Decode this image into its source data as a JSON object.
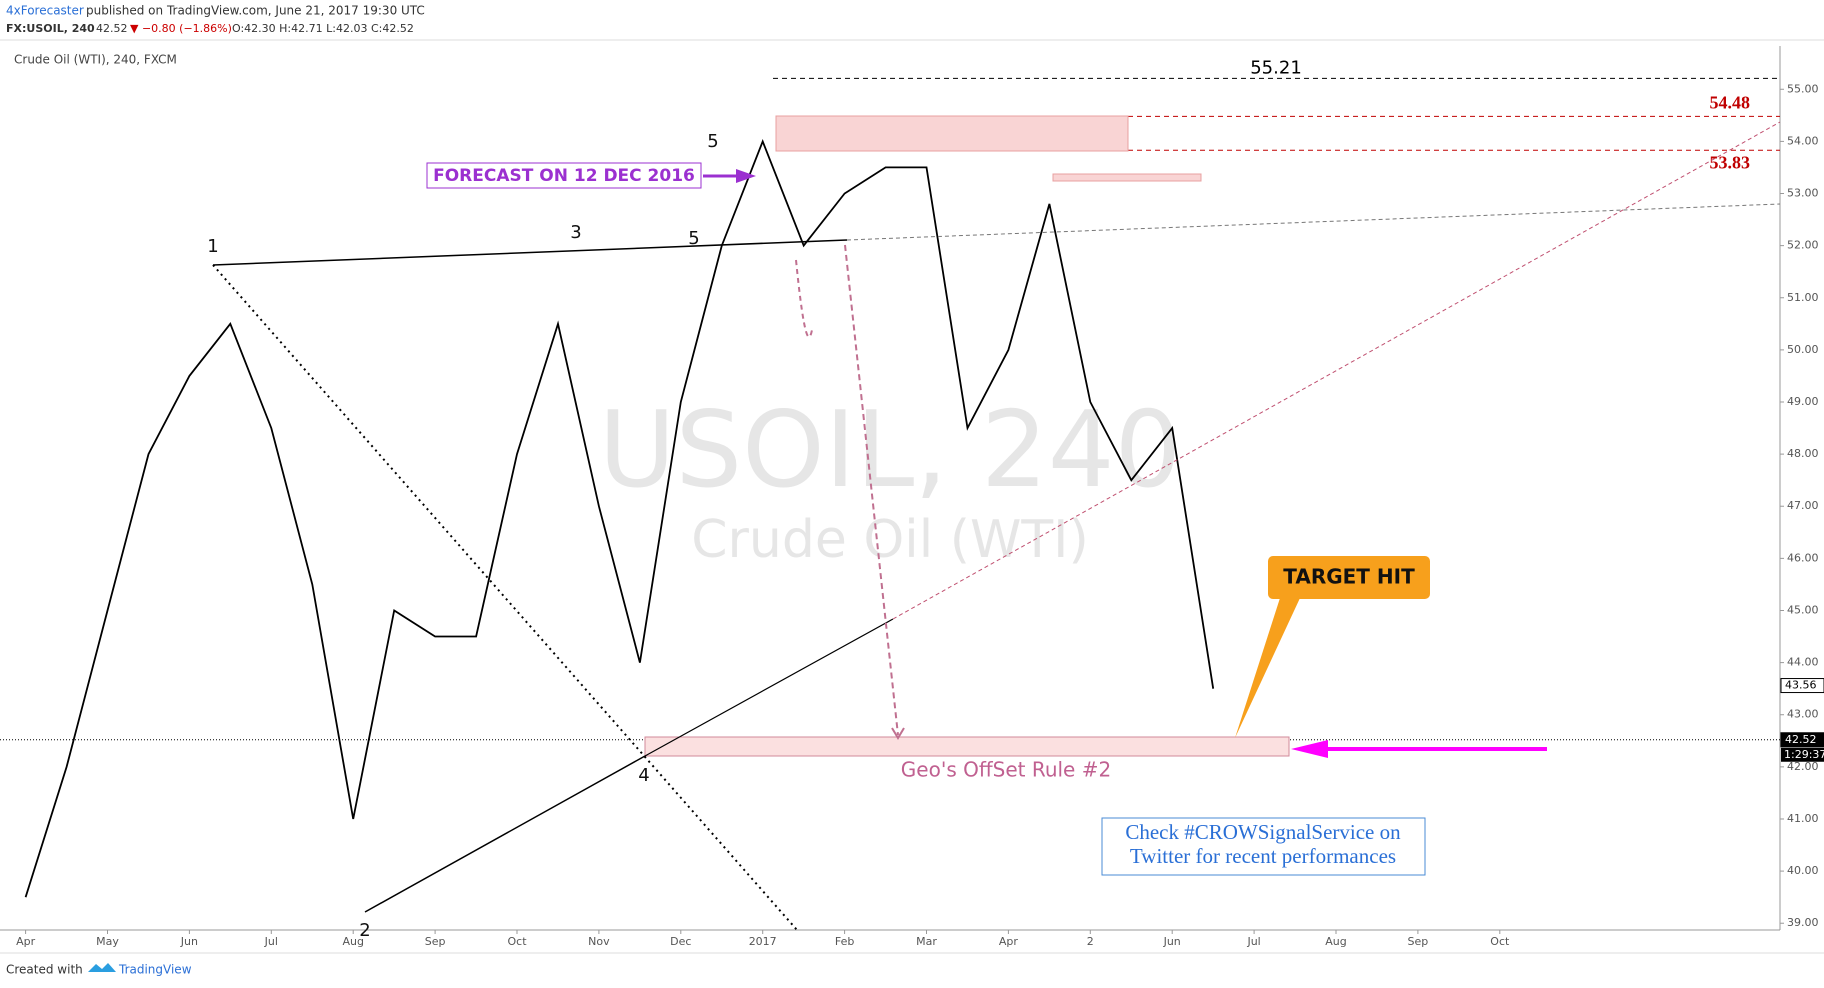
{
  "header": {
    "author": "4xForecaster",
    "published": "published on TradingView.com, June 21, 2017 19:30 UTC",
    "symbol": "FX:USOIL, 240",
    "price": "42.52",
    "change": "▼ −0.80 (−1.86%)",
    "ohlc": "O:42.30 H:42.71 L:42.03 C:42.52"
  },
  "chart_data": {
    "type": "line",
    "subtitle": "Crude Oil (WTI), 240, FXCM",
    "color": "#000000",
    "watermark": "USOIL, 240",
    "watermark_sub": "Crude Oil (WTI)",
    "categories": [
      "Apr",
      null,
      "May",
      null,
      "Jun",
      null,
      "Jul",
      null,
      "Aug",
      null,
      "Sep",
      null,
      "Oct",
      null,
      "Nov",
      null,
      "Dec",
      null,
      "2017",
      null,
      "Feb",
      null,
      "Mar",
      null,
      "Apr",
      null,
      "2",
      null,
      "Jun",
      null,
      "Jul",
      null,
      "Aug",
      null,
      "Sep",
      null,
      "Oct"
    ],
    "values": [
      39.5,
      42,
      45,
      48,
      49.5,
      50.5,
      48.5,
      45.5,
      41,
      45,
      44.5,
      44.5,
      48,
      50.5,
      47,
      44,
      49,
      52,
      54,
      52,
      53,
      53.5,
      53.5,
      48.5,
      50,
      52.8,
      49,
      47.5,
      48.5,
      43.5,
      null,
      null,
      null,
      null,
      null,
      null,
      null
    ],
    "ylim": [
      38.87,
      55.83
    ],
    "yticks": [
      {
        "value": 39,
        "label": "39.00"
      },
      {
        "value": 40,
        "label": "40.00"
      },
      {
        "value": 41,
        "label": "41.00"
      },
      {
        "value": 42,
        "label": "42.00"
      },
      {
        "value": 43,
        "label": "43.00"
      },
      {
        "value": 44,
        "label": "44.00"
      },
      {
        "value": 45,
        "label": "45.00"
      },
      {
        "value": 46,
        "label": "46.00"
      },
      {
        "value": 47,
        "label": "47.00"
      },
      {
        "value": 48,
        "label": "48.00"
      },
      {
        "value": 49,
        "label": "49.00"
      },
      {
        "value": 50,
        "label": "50.00"
      },
      {
        "value": 51,
        "label": "51.00"
      },
      {
        "value": 52,
        "label": "52.00"
      },
      {
        "value": 53,
        "label": "53.00"
      },
      {
        "value": 54,
        "label": "54.00"
      },
      {
        "value": 55,
        "label": "55.00"
      }
    ],
    "levels": [
      55.21,
      54.48,
      53.83
    ],
    "price_labels": [
      42.52,
      43.56
    ],
    "countdown": "1:29:37",
    "waves": [
      "1",
      "3",
      "5",
      "5",
      "4",
      "2"
    ],
    "annotations": {
      "forecast": "FORECAST ON 12 DEC 2016",
      "target": "TARGET HIT",
      "rule": "Geo's OffSet Rule #2",
      "promo_1": "Check #CROWSignalService on",
      "promo_2": "Twitter for recent performances"
    }
  },
  "footer": {
    "created": "Created with",
    "brand": "TradingView"
  }
}
